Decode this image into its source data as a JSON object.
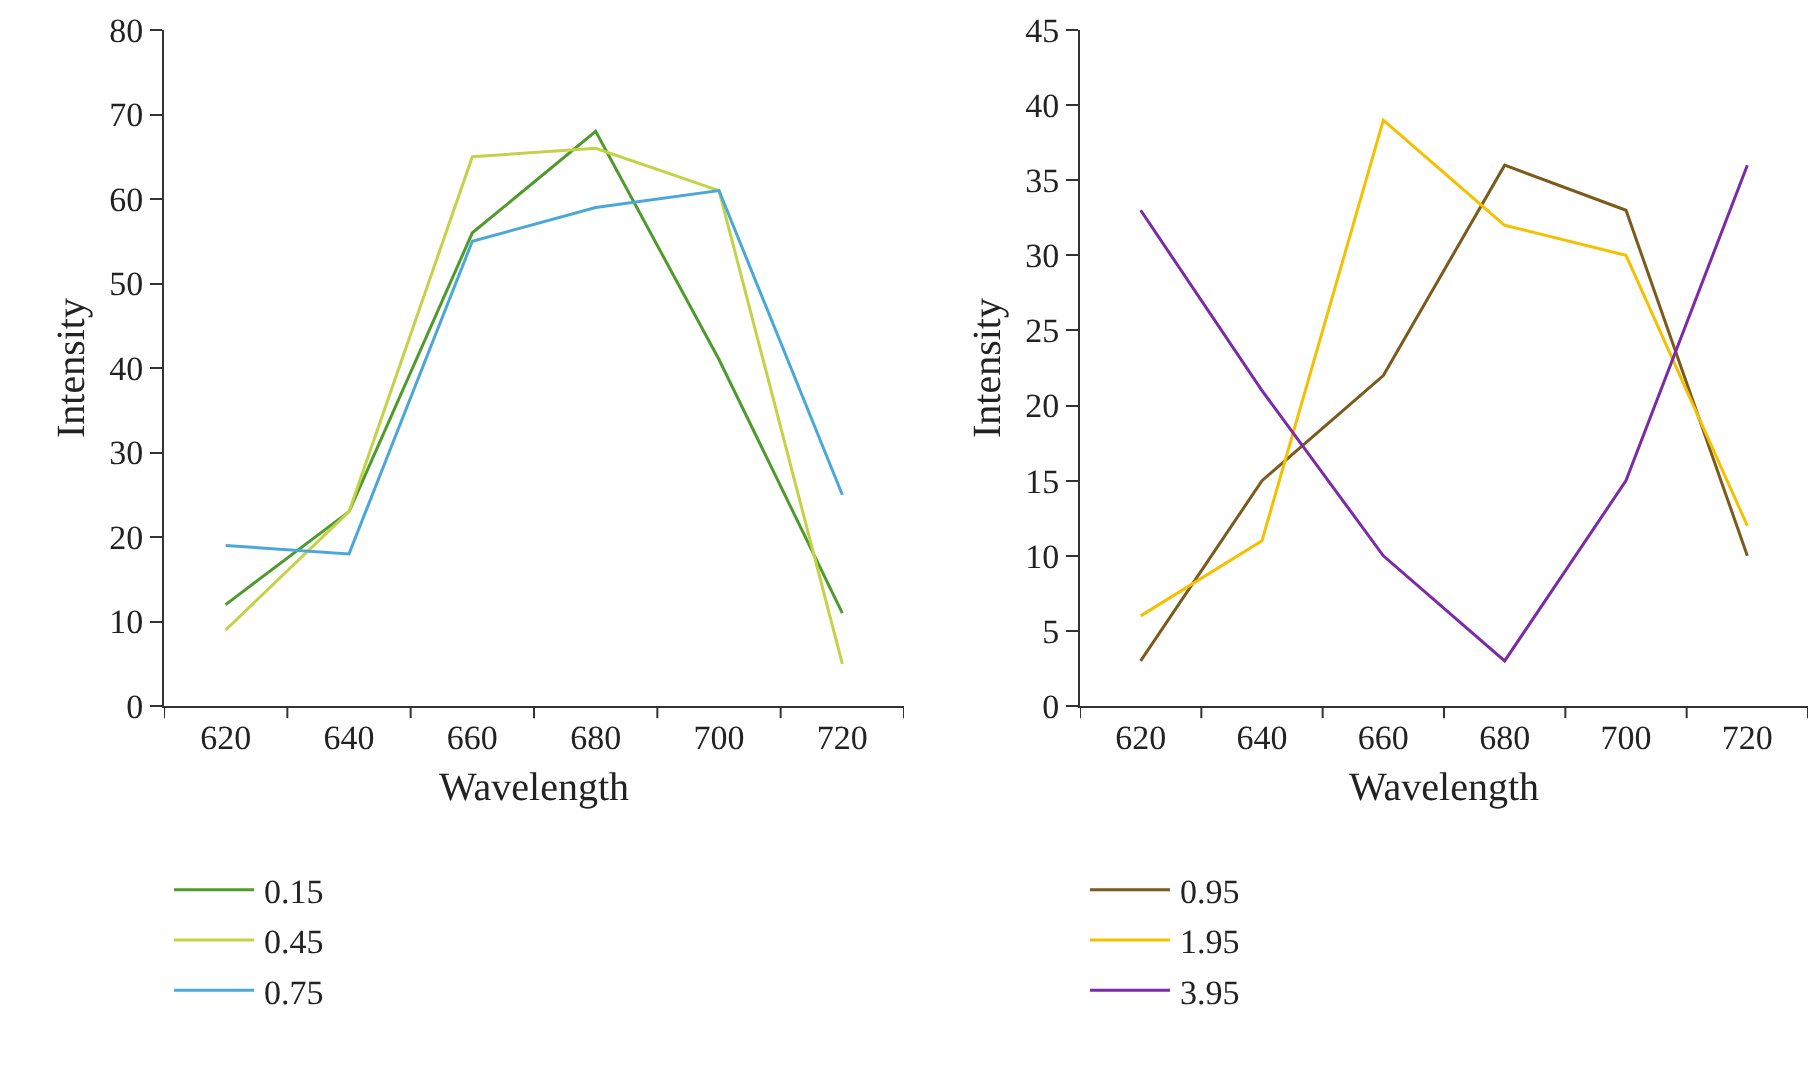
{
  "chart_data": [
    {
      "type": "line",
      "xlabel": "Wavelength",
      "ylabel": "Intensity",
      "categories": [
        "620",
        "640",
        "660",
        "680",
        "700",
        "720"
      ],
      "ylim": [
        0,
        80
      ],
      "yticks": [
        0,
        10,
        20,
        30,
        40,
        50,
        60,
        70,
        80
      ],
      "grid": false,
      "legend": "bottom",
      "marker": "none",
      "line_style": "solid",
      "series": [
        {
          "name": "0.15",
          "color": "#4f9a2c",
          "values": [
            12,
            23,
            56,
            68,
            41,
            11
          ]
        },
        {
          "name": "0.45",
          "color": "#c3d347",
          "values": [
            9,
            23,
            65,
            66,
            61,
            5
          ]
        },
        {
          "name": "0.75",
          "color": "#4aa8d8",
          "values": [
            19,
            18,
            55,
            59,
            61,
            25
          ]
        }
      ]
    },
    {
      "type": "line",
      "xlabel": "Wavelength",
      "ylabel": "Intensity",
      "categories": [
        "620",
        "640",
        "660",
        "680",
        "700",
        "720"
      ],
      "ylim": [
        0,
        45
      ],
      "yticks": [
        0,
        5,
        10,
        15,
        20,
        25,
        30,
        35,
        40,
        45
      ],
      "grid": false,
      "legend": "bottom",
      "marker": "none",
      "line_style": "solid",
      "series": [
        {
          "name": "0.95",
          "color": "#7b5a1c",
          "values": [
            3,
            15,
            22,
            36,
            33,
            10
          ]
        },
        {
          "name": "1.95",
          "color": "#f5c000",
          "values": [
            6,
            11,
            39,
            32,
            30,
            12
          ]
        },
        {
          "name": "3.95",
          "color": "#7b2aa8",
          "values": [
            33,
            21,
            10,
            3,
            15,
            36
          ]
        }
      ]
    }
  ]
}
